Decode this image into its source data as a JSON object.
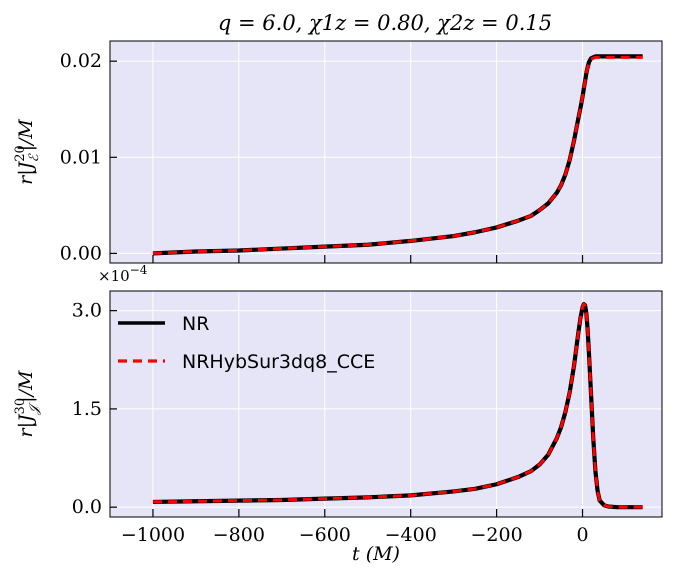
{
  "title": "q = 6.0, χ1z = 0.80, χ2z = 0.15",
  "xlabel": "t (M)",
  "legend": {
    "items": [
      {
        "name": "NR",
        "color": "#000000",
        "style": "solid"
      },
      {
        "name": "NRHybSur3dq8_CCE",
        "color": "#ff0000",
        "style": "dashed"
      }
    ]
  },
  "x_ticks": [
    "−1000",
    "−800",
    "−600",
    "−400",
    "−200",
    "0"
  ],
  "chart_data": [
    {
      "type": "line",
      "ylabel": "r|J_E^20|/M",
      "xlim": [
        -1100,
        185
      ],
      "ylim": [
        -0.001,
        0.0221
      ],
      "y_ticks": [
        {
          "value": 0.0,
          "label": "0.00"
        },
        {
          "value": 0.01,
          "label": "0.01"
        },
        {
          "value": 0.02,
          "label": "0.02"
        }
      ],
      "x_tick_values": [
        -1000,
        -800,
        -600,
        -400,
        -200,
        0
      ],
      "x": [
        -1000,
        -900,
        -800,
        -700,
        -600,
        -500,
        -400,
        -300,
        -250,
        -200,
        -150,
        -120,
        -100,
        -80,
        -60,
        -50,
        -40,
        -30,
        -20,
        -10,
        -5,
        0,
        5,
        10,
        15,
        20,
        25,
        30,
        40,
        60,
        80,
        100,
        140
      ],
      "series": [
        {
          "name": "NR",
          "values": [
            0.0,
            0.0002,
            0.0003,
            0.0005,
            0.0007,
            0.0009,
            0.0013,
            0.0018,
            0.0022,
            0.0027,
            0.0034,
            0.0039,
            0.0045,
            0.0052,
            0.0063,
            0.0071,
            0.0082,
            0.0097,
            0.0117,
            0.014,
            0.0151,
            0.0163,
            0.0177,
            0.019,
            0.0199,
            0.0203,
            0.0204,
            0.0205,
            0.0205,
            0.0205,
            0.0205,
            0.0205,
            0.0205
          ]
        },
        {
          "name": "NRHybSur3dq8_CCE",
          "values": [
            0.0,
            0.0002,
            0.0003,
            0.0005,
            0.0007,
            0.0009,
            0.0013,
            0.0018,
            0.0022,
            0.0027,
            0.0034,
            0.0039,
            0.0045,
            0.0052,
            0.0063,
            0.0071,
            0.0082,
            0.0097,
            0.0117,
            0.014,
            0.0151,
            0.0163,
            0.0177,
            0.019,
            0.0198,
            0.0202,
            0.0203,
            0.0204,
            0.0204,
            0.0204,
            0.0204,
            0.0204,
            0.0204
          ]
        }
      ]
    },
    {
      "type": "line",
      "ylabel": "r|J_J^30|/M",
      "multiplier": "×10^−4",
      "xlim": [
        -1100,
        185
      ],
      "ylim": [
        -0.15,
        3.3
      ],
      "y_ticks": [
        {
          "value": 0.0,
          "label": "0.0"
        },
        {
          "value": 1.5,
          "label": "1.5"
        },
        {
          "value": 3.0,
          "label": "3.0"
        }
      ],
      "x_tick_values": [
        -1000,
        -800,
        -600,
        -400,
        -200,
        0
      ],
      "x": [
        -1000,
        -900,
        -800,
        -700,
        -600,
        -500,
        -400,
        -300,
        -250,
        -200,
        -150,
        -120,
        -100,
        -80,
        -60,
        -50,
        -40,
        -30,
        -20,
        -10,
        -5,
        0,
        3,
        6,
        9,
        12,
        15,
        20,
        25,
        30,
        35,
        40,
        50,
        60,
        80,
        100,
        140
      ],
      "series": [
        {
          "name": "NR",
          "values": [
            0.08,
            0.09,
            0.1,
            0.11,
            0.13,
            0.15,
            0.18,
            0.24,
            0.28,
            0.35,
            0.46,
            0.55,
            0.65,
            0.8,
            1.05,
            1.22,
            1.45,
            1.75,
            2.15,
            2.65,
            2.88,
            3.05,
            3.1,
            3.08,
            2.95,
            2.7,
            2.35,
            1.7,
            1.05,
            0.55,
            0.25,
            0.1,
            0.03,
            0.01,
            0.0,
            0.0,
            0.0
          ]
        },
        {
          "name": "NRHybSur3dq8_CCE",
          "values": [
            0.08,
            0.09,
            0.1,
            0.11,
            0.13,
            0.15,
            0.18,
            0.24,
            0.28,
            0.35,
            0.46,
            0.55,
            0.65,
            0.8,
            1.05,
            1.22,
            1.45,
            1.75,
            2.15,
            2.65,
            2.88,
            3.05,
            3.1,
            3.08,
            2.95,
            2.7,
            2.35,
            1.7,
            1.05,
            0.55,
            0.25,
            0.1,
            0.03,
            0.01,
            0.0,
            0.0,
            0.0
          ]
        }
      ]
    }
  ]
}
